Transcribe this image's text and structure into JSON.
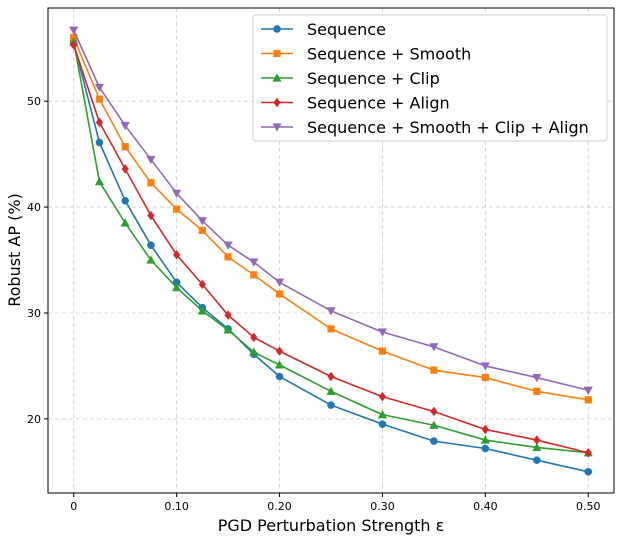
{
  "chart_data": {
    "type": "line",
    "title": "",
    "xlabel": "PGD Perturbation Strength ε",
    "ylabel": "Robust AP (%)",
    "x": [
      0,
      0.025,
      0.05,
      0.075,
      0.1,
      0.125,
      0.15,
      0.175,
      0.2,
      0.25,
      0.3,
      0.35,
      0.4,
      0.45,
      0.5
    ],
    "xlim": [
      -0.025,
      0.525
    ],
    "ylim": [
      13.0,
      58.8
    ],
    "xticks": [
      0,
      0.1,
      0.2,
      0.3,
      0.4,
      0.5
    ],
    "xtick_labels": [
      "0",
      "0.10",
      "0.20",
      "0.30",
      "0.40",
      "0.50"
    ],
    "yticks": [
      20,
      30,
      40,
      50
    ],
    "ytick_labels": [
      "20",
      "30",
      "40",
      "50"
    ],
    "grid": true,
    "legend_position": "top-right",
    "series": [
      {
        "name": "Sequence",
        "color": "#1f77b4",
        "marker": "circle",
        "values": [
          55.5,
          46.1,
          40.6,
          36.4,
          32.9,
          30.5,
          28.5,
          26.1,
          24.0,
          21.3,
          19.5,
          17.9,
          17.2,
          16.1,
          15.0
        ]
      },
      {
        "name": "Sequence + Smooth",
        "color": "#ff7f0e",
        "marker": "square",
        "values": [
          56.0,
          50.2,
          45.7,
          42.3,
          39.8,
          37.8,
          35.3,
          33.6,
          31.8,
          28.5,
          26.4,
          24.6,
          23.9,
          22.6,
          21.8
        ]
      },
      {
        "name": "Sequence + Clip",
        "color": "#2ca02c",
        "marker": "triangle-up",
        "values": [
          55.6,
          42.4,
          38.5,
          35.0,
          32.4,
          30.2,
          28.4,
          26.3,
          25.1,
          22.6,
          20.4,
          19.4,
          18.0,
          17.3,
          16.8
        ]
      },
      {
        "name": "Sequence + Align",
        "color": "#d62728",
        "marker": "diamond",
        "values": [
          55.3,
          48.0,
          43.6,
          39.2,
          35.5,
          32.7,
          29.8,
          27.7,
          26.4,
          24.0,
          22.1,
          20.7,
          19.0,
          18.0,
          16.8
        ]
      },
      {
        "name": "Sequence + Smooth + Clip + Align",
        "color": "#9467bd",
        "marker": "triangle-down",
        "values": [
          56.7,
          51.3,
          47.7,
          44.5,
          41.3,
          38.7,
          36.4,
          34.8,
          32.9,
          30.2,
          28.2,
          26.8,
          25.0,
          23.9,
          22.7
        ]
      }
    ]
  }
}
